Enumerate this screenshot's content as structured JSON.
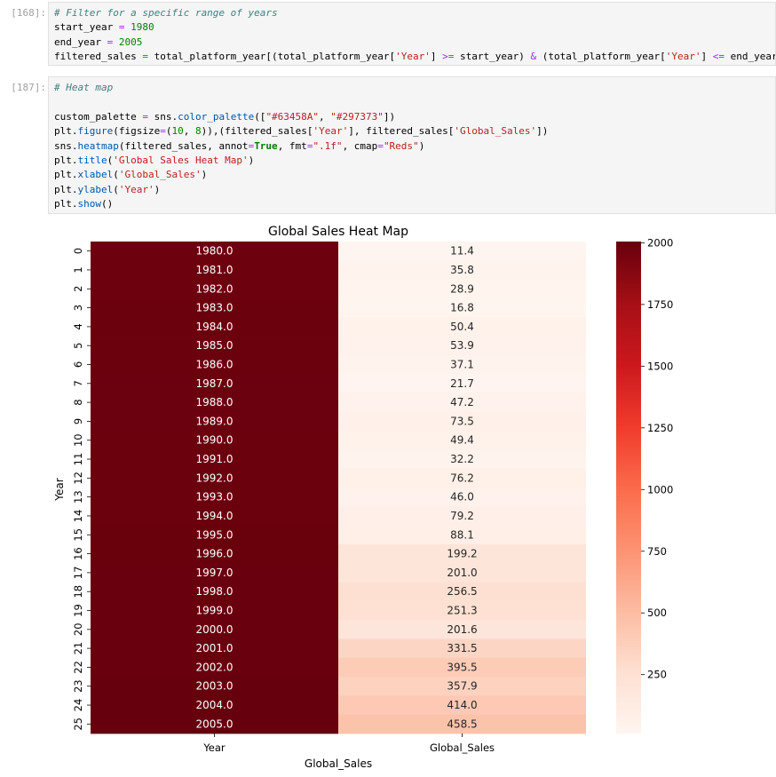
{
  "cells": [
    {
      "prompt": "[168]:",
      "lines": [
        [
          {
            "t": "# Filter for a specific range of years",
            "c": "cm"
          }
        ],
        [
          {
            "t": "start_year "
          },
          {
            "t": "=",
            "c": "op"
          },
          {
            "t": " "
          },
          {
            "t": "1980",
            "c": "num"
          }
        ],
        [
          {
            "t": "end_year "
          },
          {
            "t": "=",
            "c": "op"
          },
          {
            "t": " "
          },
          {
            "t": "2005",
            "c": "num"
          }
        ],
        [
          {
            "t": "filtered_sales "
          },
          {
            "t": "=",
            "c": "op"
          },
          {
            "t": " total_platform_year[(total_platform_year["
          },
          {
            "t": "'Year'",
            "c": "str"
          },
          {
            "t": "] "
          },
          {
            "t": ">=",
            "c": "op"
          },
          {
            "t": " start_year) "
          },
          {
            "t": "&",
            "c": "op"
          },
          {
            "t": " (total_platform_year["
          },
          {
            "t": "'Year'",
            "c": "str"
          },
          {
            "t": "] "
          },
          {
            "t": "<=",
            "c": "op"
          },
          {
            "t": " end_year)]"
          }
        ]
      ]
    },
    {
      "prompt": "[187]:",
      "lines": [
        [
          {
            "t": "# Heat map",
            "c": "cm"
          }
        ],
        [
          {
            "t": ""
          }
        ],
        [
          {
            "t": "custom_palette "
          },
          {
            "t": "=",
            "c": "op"
          },
          {
            "t": " sns."
          },
          {
            "t": "color_palette",
            "c": "fn"
          },
          {
            "t": "(["
          },
          {
            "t": "\"#63458A\"",
            "c": "str"
          },
          {
            "t": ", "
          },
          {
            "t": "\"#297373\"",
            "c": "str"
          },
          {
            "t": "])"
          }
        ],
        [
          {
            "t": "plt."
          },
          {
            "t": "figure",
            "c": "fn"
          },
          {
            "t": "(figsize"
          },
          {
            "t": "=",
            "c": "op"
          },
          {
            "t": "("
          },
          {
            "t": "10",
            "c": "num"
          },
          {
            "t": ", "
          },
          {
            "t": "8",
            "c": "num"
          },
          {
            "t": ")),(filtered_sales["
          },
          {
            "t": "'Year'",
            "c": "str"
          },
          {
            "t": "], filtered_sales["
          },
          {
            "t": "'Global_Sales'",
            "c": "str"
          },
          {
            "t": "])"
          }
        ],
        [
          {
            "t": "sns."
          },
          {
            "t": "heatmap",
            "c": "fn"
          },
          {
            "t": "(filtered_sales, annot"
          },
          {
            "t": "=",
            "c": "op"
          },
          {
            "t": "True",
            "c": "kw"
          },
          {
            "t": ", fmt"
          },
          {
            "t": "=",
            "c": "op"
          },
          {
            "t": "\".1f\"",
            "c": "str"
          },
          {
            "t": ", cmap"
          },
          {
            "t": "=",
            "c": "op"
          },
          {
            "t": "\"Reds\"",
            "c": "str"
          },
          {
            "t": ")"
          }
        ],
        [
          {
            "t": "plt."
          },
          {
            "t": "title",
            "c": "fn"
          },
          {
            "t": "("
          },
          {
            "t": "'Global Sales Heat Map'",
            "c": "str"
          },
          {
            "t": ")"
          }
        ],
        [
          {
            "t": "plt."
          },
          {
            "t": "xlabel",
            "c": "fn"
          },
          {
            "t": "("
          },
          {
            "t": "'Global_Sales'",
            "c": "str"
          },
          {
            "t": ")"
          }
        ],
        [
          {
            "t": "plt."
          },
          {
            "t": "ylabel",
            "c": "fn"
          },
          {
            "t": "("
          },
          {
            "t": "'Year'",
            "c": "str"
          },
          {
            "t": ")"
          }
        ],
        [
          {
            "t": "plt."
          },
          {
            "t": "show",
            "c": "fn"
          },
          {
            "t": "()"
          }
        ]
      ]
    }
  ],
  "chart_data": {
    "type": "heatmap",
    "title": "Global Sales Heat Map",
    "xlabel": "Global_Sales",
    "ylabel": "Year",
    "columns": [
      "Year",
      "Global_Sales"
    ],
    "row_labels": [
      "0",
      "1",
      "2",
      "3",
      "4",
      "5",
      "6",
      "7",
      "8",
      "9",
      "10",
      "11",
      "12",
      "13",
      "14",
      "15",
      "16",
      "17",
      "18",
      "19",
      "20",
      "21",
      "22",
      "23",
      "24",
      "25"
    ],
    "values": [
      [
        1980.0,
        11.4
      ],
      [
        1981.0,
        35.8
      ],
      [
        1982.0,
        28.9
      ],
      [
        1983.0,
        16.8
      ],
      [
        1984.0,
        50.4
      ],
      [
        1985.0,
        53.9
      ],
      [
        1986.0,
        37.1
      ],
      [
        1987.0,
        21.7
      ],
      [
        1988.0,
        47.2
      ],
      [
        1989.0,
        73.5
      ],
      [
        1990.0,
        49.4
      ],
      [
        1991.0,
        32.2
      ],
      [
        1992.0,
        76.2
      ],
      [
        1993.0,
        46.0
      ],
      [
        1994.0,
        79.2
      ],
      [
        1995.0,
        88.1
      ],
      [
        1996.0,
        199.2
      ],
      [
        1997.0,
        201.0
      ],
      [
        1998.0,
        256.5
      ],
      [
        1999.0,
        251.3
      ],
      [
        2000.0,
        201.6
      ],
      [
        2001.0,
        331.5
      ],
      [
        2002.0,
        395.5
      ],
      [
        2003.0,
        357.9
      ],
      [
        2004.0,
        414.0
      ],
      [
        2005.0,
        458.5
      ]
    ],
    "colormap": "Reds",
    "annotation_format": ".1f",
    "vmin": 11.4,
    "vmax": 2005.0,
    "colorbar_ticks": [
      250,
      500,
      750,
      1000,
      1250,
      1500,
      1750,
      2000
    ]
  }
}
